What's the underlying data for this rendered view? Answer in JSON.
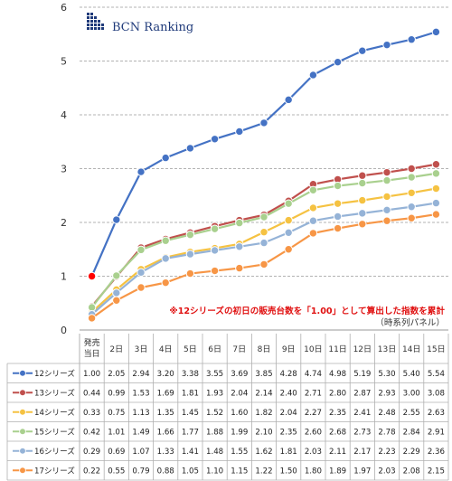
{
  "logo": {
    "text": "BCN Ranking",
    "color": "#1f3a7a"
  },
  "annotation": {
    "main": "※12シリーズの初日の販売台数を「1.00」として算出した指数を累計",
    "sub": "（時系列パネル）",
    "color": "#e01010"
  },
  "chart_data": {
    "type": "line",
    "categories": [
      "発売\n当日",
      "2日",
      "3日",
      "4日",
      "5日",
      "6日",
      "7日",
      "8日",
      "9日",
      "10日",
      "11日",
      "12日",
      "13日",
      "14日",
      "15日"
    ],
    "ylim": [
      0,
      6
    ],
    "yticks": [
      "0",
      "1",
      "2",
      "3",
      "4",
      "5",
      "6"
    ],
    "grid": "horizontal dashed",
    "legend": "data table below chart",
    "series": [
      {
        "name": "12シリーズ",
        "color": "#4472c4",
        "first_point_color": "#ff0000",
        "values": [
          1.0,
          2.05,
          2.94,
          3.2,
          3.38,
          3.55,
          3.69,
          3.85,
          4.28,
          4.74,
          4.98,
          5.19,
          5.3,
          5.4,
          5.54
        ]
      },
      {
        "name": "13シリーズ",
        "color": "#c0504d",
        "values": [
          0.44,
          0.99,
          1.53,
          1.69,
          1.81,
          1.93,
          2.04,
          2.14,
          2.4,
          2.71,
          2.8,
          2.87,
          2.93,
          3.0,
          3.08
        ]
      },
      {
        "name": "14シリーズ",
        "color": "#f5c242",
        "values": [
          0.33,
          0.75,
          1.13,
          1.35,
          1.45,
          1.52,
          1.6,
          1.82,
          2.04,
          2.27,
          2.35,
          2.41,
          2.48,
          2.55,
          2.63
        ]
      },
      {
        "name": "15シリーズ",
        "color": "#a9d08e",
        "values": [
          0.42,
          1.01,
          1.49,
          1.66,
          1.77,
          1.88,
          1.99,
          2.1,
          2.35,
          2.6,
          2.68,
          2.73,
          2.78,
          2.84,
          2.91
        ]
      },
      {
        "name": "16シリーズ",
        "color": "#95b3d7",
        "values": [
          0.29,
          0.69,
          1.07,
          1.33,
          1.41,
          1.48,
          1.55,
          1.62,
          1.81,
          2.03,
          2.11,
          2.17,
          2.23,
          2.29,
          2.36
        ]
      },
      {
        "name": "17シリーズ",
        "color": "#f79646",
        "values": [
          0.22,
          0.55,
          0.79,
          0.88,
          1.05,
          1.1,
          1.15,
          1.22,
          1.5,
          1.8,
          1.89,
          1.97,
          2.03,
          2.08,
          2.15
        ]
      }
    ]
  }
}
